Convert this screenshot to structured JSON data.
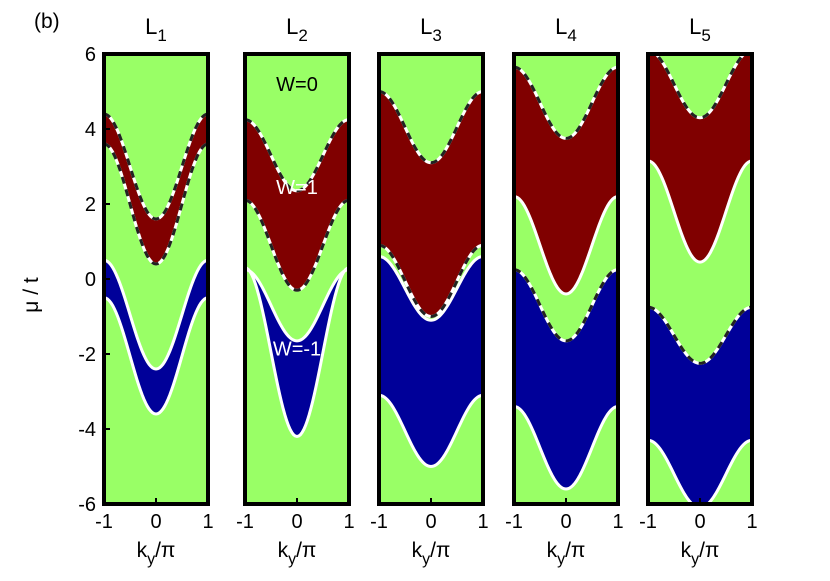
{
  "figure": {
    "panel_label": "(b)",
    "ylabel": {
      "base": "μ",
      "rest": " / t"
    },
    "xlabel": {
      "base": "k",
      "sub": "y",
      "rest": "/π"
    }
  },
  "chart_data": {
    "type": "area",
    "description_of_encoding": "Five phase-diagram panels (L_1..L_5). Horizontal axis k_y/π from -1 to 1, vertical axis μ/t from -6 to 6. Each region is bounded by cosine-shaped phase boundaries μ(k) = c - a·cos(π k). Regions colored by winding number W.",
    "xlim": [
      -1,
      1
    ],
    "ylim": [
      -6,
      6
    ],
    "xticks": [
      "-1",
      "0",
      "1"
    ],
    "yticks": [
      "-6",
      "-4",
      "-2",
      "0",
      "2",
      "4",
      "6"
    ],
    "colors": {
      "W=0": "#99ff66",
      "W=1": "#800000",
      "W=-1": "#000099",
      "boundary": "#ffffff"
    },
    "region_labels": [
      {
        "panel": 1,
        "text": "W=0",
        "x": 0.0,
        "y": 4.75
      },
      {
        "panel": 1,
        "text": "W=1",
        "x": 0.0,
        "y": 1.9
      },
      {
        "panel": 1,
        "text": "W=-1",
        "x": 0.0,
        "y": -2.4
      }
    ],
    "panels": [
      {
        "title_base": "L",
        "title_sub": "1",
        "bands": [
          {
            "W": 1,
            "lower": {
              "c": 2.0,
              "a": 1.6
            },
            "upper": {
              "c": 3.0,
              "a": 1.4
            }
          },
          {
            "W": -1,
            "lower": {
              "c": -2.05,
              "a": 1.55
            },
            "upper": {
              "c": -0.95,
              "a": 1.45
            }
          }
        ],
        "dashed": [
          {
            "c": 2.0,
            "a": 1.6
          },
          {
            "c": 3.0,
            "a": 1.4
          }
        ]
      },
      {
        "title_base": "L",
        "title_sub": "2",
        "bands": [
          {
            "W": 1,
            "lower": {
              "c": 0.9,
              "a": 1.2
            },
            "upper": {
              "c": 3.3,
              "a": 0.95
            }
          },
          {
            "W": -1,
            "lower": {
              "c": -1.95,
              "a": 2.25
            },
            "upper": {
              "c": -0.7,
              "a": 0.95
            }
          }
        ],
        "dashed": [
          {
            "c": 0.9,
            "a": 1.2
          },
          {
            "c": 3.3,
            "a": 0.95
          }
        ]
      },
      {
        "title_base": "L",
        "title_sub": "3",
        "bands": [
          {
            "W": 1,
            "lower": {
              "c": -0.05,
              "a": 0.95
            },
            "upper": {
              "c": 4.05,
              "a": 0.95
            }
          },
          {
            "W": -1,
            "lower": {
              "c": -4.05,
              "a": 0.95
            },
            "upper": {
              "c": -0.25,
              "a": 0.85
            }
          }
        ],
        "dashed": [
          {
            "c": -0.05,
            "a": 0.95
          },
          {
            "c": 4.05,
            "a": 0.95
          }
        ]
      },
      {
        "title_base": "L",
        "title_sub": "4",
        "bands": [
          {
            "W": 1,
            "lower": {
              "c": 0.9,
              "a": 1.3
            },
            "upper": {
              "c": 4.7,
              "a": 0.95
            }
          },
          {
            "W": -1,
            "lower": {
              "c": -4.5,
              "a": 1.1
            },
            "upper": {
              "c": -0.7,
              "a": 0.95
            }
          }
        ],
        "dashed": [
          {
            "c": 4.7,
            "a": 0.95
          },
          {
            "c": -0.7,
            "a": 0.95
          }
        ]
      },
      {
        "title_base": "L",
        "title_sub": "5",
        "bands": [
          {
            "W": 1,
            "lower": {
              "c": 1.8,
              "a": 1.35
            },
            "upper": {
              "c": 5.2,
              "a": 0.9
            }
          },
          {
            "W": -1,
            "lower": {
              "c": -5.2,
              "a": 0.9
            },
            "upper": {
              "c": -1.5,
              "a": 0.75
            }
          }
        ],
        "dashed": [
          {
            "c": 5.2,
            "a": 0.9
          },
          {
            "c": -1.5,
            "a": 0.75
          }
        ]
      }
    ]
  }
}
